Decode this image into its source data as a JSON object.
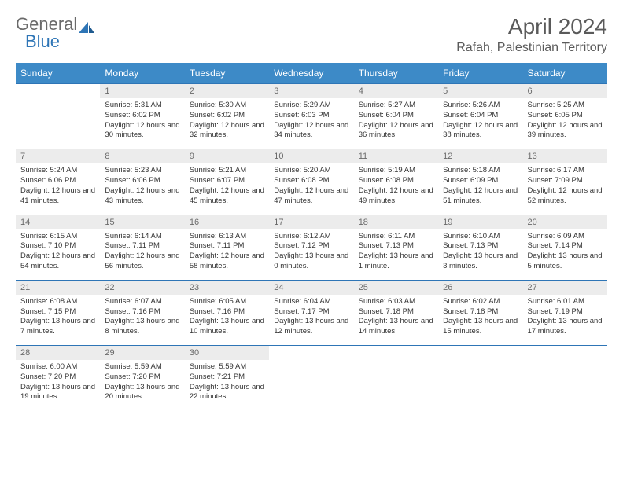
{
  "logo": {
    "word1": "General",
    "word2": "Blue"
  },
  "title": "April 2024",
  "location": "Rafah, Palestinian Territory",
  "colors": {
    "header_bg": "#3d8ac7",
    "header_fg": "#ffffff",
    "daynum_bg": "#ececec",
    "daynum_fg": "#6a6a6a",
    "row_border": "#2e75b6",
    "body_text": "#333333",
    "logo_gray": "#6a6a6a",
    "logo_blue": "#2e75b6"
  },
  "weekdays": [
    "Sunday",
    "Monday",
    "Tuesday",
    "Wednesday",
    "Thursday",
    "Friday",
    "Saturday"
  ],
  "weeks": [
    [
      {
        "n": "",
        "sr": "",
        "ss": "",
        "dl": ""
      },
      {
        "n": "1",
        "sr": "5:31 AM",
        "ss": "6:02 PM",
        "dl": "12 hours and 30 minutes."
      },
      {
        "n": "2",
        "sr": "5:30 AM",
        "ss": "6:02 PM",
        "dl": "12 hours and 32 minutes."
      },
      {
        "n": "3",
        "sr": "5:29 AM",
        "ss": "6:03 PM",
        "dl": "12 hours and 34 minutes."
      },
      {
        "n": "4",
        "sr": "5:27 AM",
        "ss": "6:04 PM",
        "dl": "12 hours and 36 minutes."
      },
      {
        "n": "5",
        "sr": "5:26 AM",
        "ss": "6:04 PM",
        "dl": "12 hours and 38 minutes."
      },
      {
        "n": "6",
        "sr": "5:25 AM",
        "ss": "6:05 PM",
        "dl": "12 hours and 39 minutes."
      }
    ],
    [
      {
        "n": "7",
        "sr": "5:24 AM",
        "ss": "6:06 PM",
        "dl": "12 hours and 41 minutes."
      },
      {
        "n": "8",
        "sr": "5:23 AM",
        "ss": "6:06 PM",
        "dl": "12 hours and 43 minutes."
      },
      {
        "n": "9",
        "sr": "5:21 AM",
        "ss": "6:07 PM",
        "dl": "12 hours and 45 minutes."
      },
      {
        "n": "10",
        "sr": "5:20 AM",
        "ss": "6:08 PM",
        "dl": "12 hours and 47 minutes."
      },
      {
        "n": "11",
        "sr": "5:19 AM",
        "ss": "6:08 PM",
        "dl": "12 hours and 49 minutes."
      },
      {
        "n": "12",
        "sr": "5:18 AM",
        "ss": "6:09 PM",
        "dl": "12 hours and 51 minutes."
      },
      {
        "n": "13",
        "sr": "6:17 AM",
        "ss": "7:09 PM",
        "dl": "12 hours and 52 minutes."
      }
    ],
    [
      {
        "n": "14",
        "sr": "6:15 AM",
        "ss": "7:10 PM",
        "dl": "12 hours and 54 minutes."
      },
      {
        "n": "15",
        "sr": "6:14 AM",
        "ss": "7:11 PM",
        "dl": "12 hours and 56 minutes."
      },
      {
        "n": "16",
        "sr": "6:13 AM",
        "ss": "7:11 PM",
        "dl": "12 hours and 58 minutes."
      },
      {
        "n": "17",
        "sr": "6:12 AM",
        "ss": "7:12 PM",
        "dl": "13 hours and 0 minutes."
      },
      {
        "n": "18",
        "sr": "6:11 AM",
        "ss": "7:13 PM",
        "dl": "13 hours and 1 minute."
      },
      {
        "n": "19",
        "sr": "6:10 AM",
        "ss": "7:13 PM",
        "dl": "13 hours and 3 minutes."
      },
      {
        "n": "20",
        "sr": "6:09 AM",
        "ss": "7:14 PM",
        "dl": "13 hours and 5 minutes."
      }
    ],
    [
      {
        "n": "21",
        "sr": "6:08 AM",
        "ss": "7:15 PM",
        "dl": "13 hours and 7 minutes."
      },
      {
        "n": "22",
        "sr": "6:07 AM",
        "ss": "7:16 PM",
        "dl": "13 hours and 8 minutes."
      },
      {
        "n": "23",
        "sr": "6:05 AM",
        "ss": "7:16 PM",
        "dl": "13 hours and 10 minutes."
      },
      {
        "n": "24",
        "sr": "6:04 AM",
        "ss": "7:17 PM",
        "dl": "13 hours and 12 minutes."
      },
      {
        "n": "25",
        "sr": "6:03 AM",
        "ss": "7:18 PM",
        "dl": "13 hours and 14 minutes."
      },
      {
        "n": "26",
        "sr": "6:02 AM",
        "ss": "7:18 PM",
        "dl": "13 hours and 15 minutes."
      },
      {
        "n": "27",
        "sr": "6:01 AM",
        "ss": "7:19 PM",
        "dl": "13 hours and 17 minutes."
      }
    ],
    [
      {
        "n": "28",
        "sr": "6:00 AM",
        "ss": "7:20 PM",
        "dl": "13 hours and 19 minutes."
      },
      {
        "n": "29",
        "sr": "5:59 AM",
        "ss": "7:20 PM",
        "dl": "13 hours and 20 minutes."
      },
      {
        "n": "30",
        "sr": "5:59 AM",
        "ss": "7:21 PM",
        "dl": "13 hours and 22 minutes."
      },
      {
        "n": "",
        "sr": "",
        "ss": "",
        "dl": ""
      },
      {
        "n": "",
        "sr": "",
        "ss": "",
        "dl": ""
      },
      {
        "n": "",
        "sr": "",
        "ss": "",
        "dl": ""
      },
      {
        "n": "",
        "sr": "",
        "ss": "",
        "dl": ""
      }
    ]
  ],
  "labels": {
    "sunrise": "Sunrise:",
    "sunset": "Sunset:",
    "daylight": "Daylight:"
  }
}
